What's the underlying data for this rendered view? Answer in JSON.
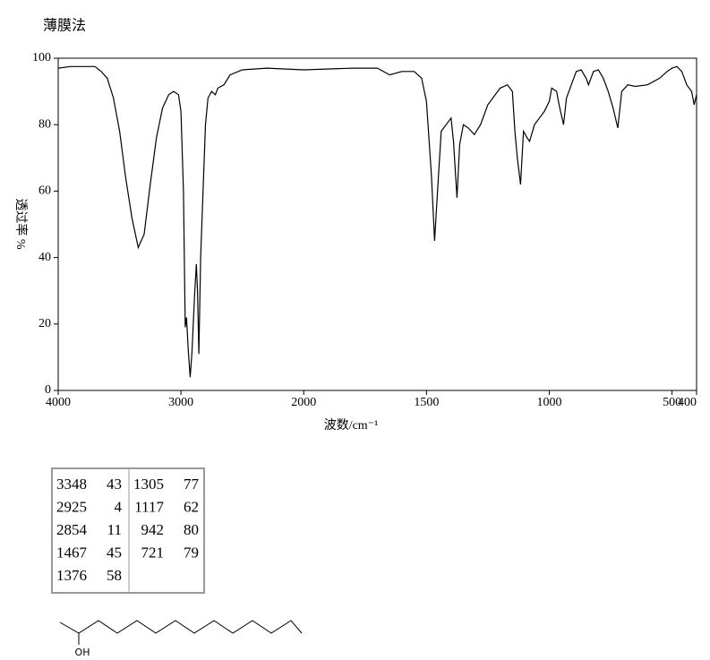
{
  "chart_data": {
    "type": "line",
    "title": "薄膜法",
    "x_label": "波数/cm⁻¹",
    "y_label": "透过率 %",
    "xlim": [
      4000,
      400
    ],
    "x_scale_break": 2000,
    "ylim": [
      0,
      100
    ],
    "xticks": [
      4000,
      3000,
      2000,
      1500,
      1000,
      500,
      400
    ],
    "yticks": [
      0,
      20,
      40,
      60,
      80,
      100
    ],
    "series": [
      {
        "color": "#000000",
        "x": [
          4000,
          3900,
          3700,
          3650,
          3600,
          3550,
          3500,
          3450,
          3400,
          3348,
          3300,
          3250,
          3200,
          3150,
          3100,
          3060,
          3020,
          3000,
          2980,
          2965,
          2955,
          2940,
          2925,
          2910,
          2890,
          2875,
          2865,
          2854,
          2840,
          2800,
          2780,
          2750,
          2720,
          2700,
          2650,
          2600,
          2500,
          2300,
          2000,
          1800,
          1700,
          1650,
          1600,
          1550,
          1520,
          1500,
          1480,
          1467,
          1455,
          1440,
          1420,
          1400,
          1390,
          1376,
          1365,
          1350,
          1330,
          1305,
          1280,
          1250,
          1200,
          1170,
          1150,
          1140,
          1130,
          1117,
          1105,
          1090,
          1080,
          1060,
          1040,
          1020,
          1000,
          990,
          970,
          960,
          942,
          930,
          910,
          890,
          870,
          850,
          840,
          820,
          800,
          780,
          760,
          740,
          721,
          705,
          680,
          650,
          600,
          550,
          520,
          500,
          480,
          460,
          440,
          420,
          410,
          400
        ],
        "values": [
          97,
          97.5,
          97.5,
          96,
          94,
          88,
          78,
          64,
          52,
          43,
          47,
          62,
          76,
          85,
          89,
          90,
          89,
          84,
          60,
          19,
          22,
          12,
          4,
          12,
          28,
          38,
          30,
          11,
          40,
          80,
          88,
          90,
          89,
          91,
          92,
          95,
          96.5,
          97,
          96.5,
          97,
          97,
          95,
          96,
          96,
          94,
          87,
          65,
          45,
          60,
          78,
          80,
          82,
          75,
          58,
          74,
          80,
          79,
          77,
          80,
          86,
          91,
          92,
          90,
          78,
          70,
          62,
          78,
          76,
          75,
          80,
          82,
          84,
          87,
          91,
          90,
          86,
          80,
          88,
          92,
          96,
          96.5,
          94,
          92,
          96,
          96.5,
          94,
          90,
          85,
          79,
          90,
          92,
          91.5,
          92,
          94,
          96,
          97,
          97.5,
          96,
          92,
          90,
          86,
          89
        ]
      }
    ]
  },
  "peak_table": {
    "rows": [
      [
        "3348",
        "43",
        "1305",
        "77"
      ],
      [
        "2925",
        "4",
        "1117",
        "62"
      ],
      [
        "2854",
        "11",
        "942",
        "80"
      ],
      [
        "1467",
        "45",
        "721",
        "79"
      ],
      [
        "1376",
        "58",
        null,
        null
      ]
    ]
  },
  "structure": {
    "label": "OH"
  }
}
